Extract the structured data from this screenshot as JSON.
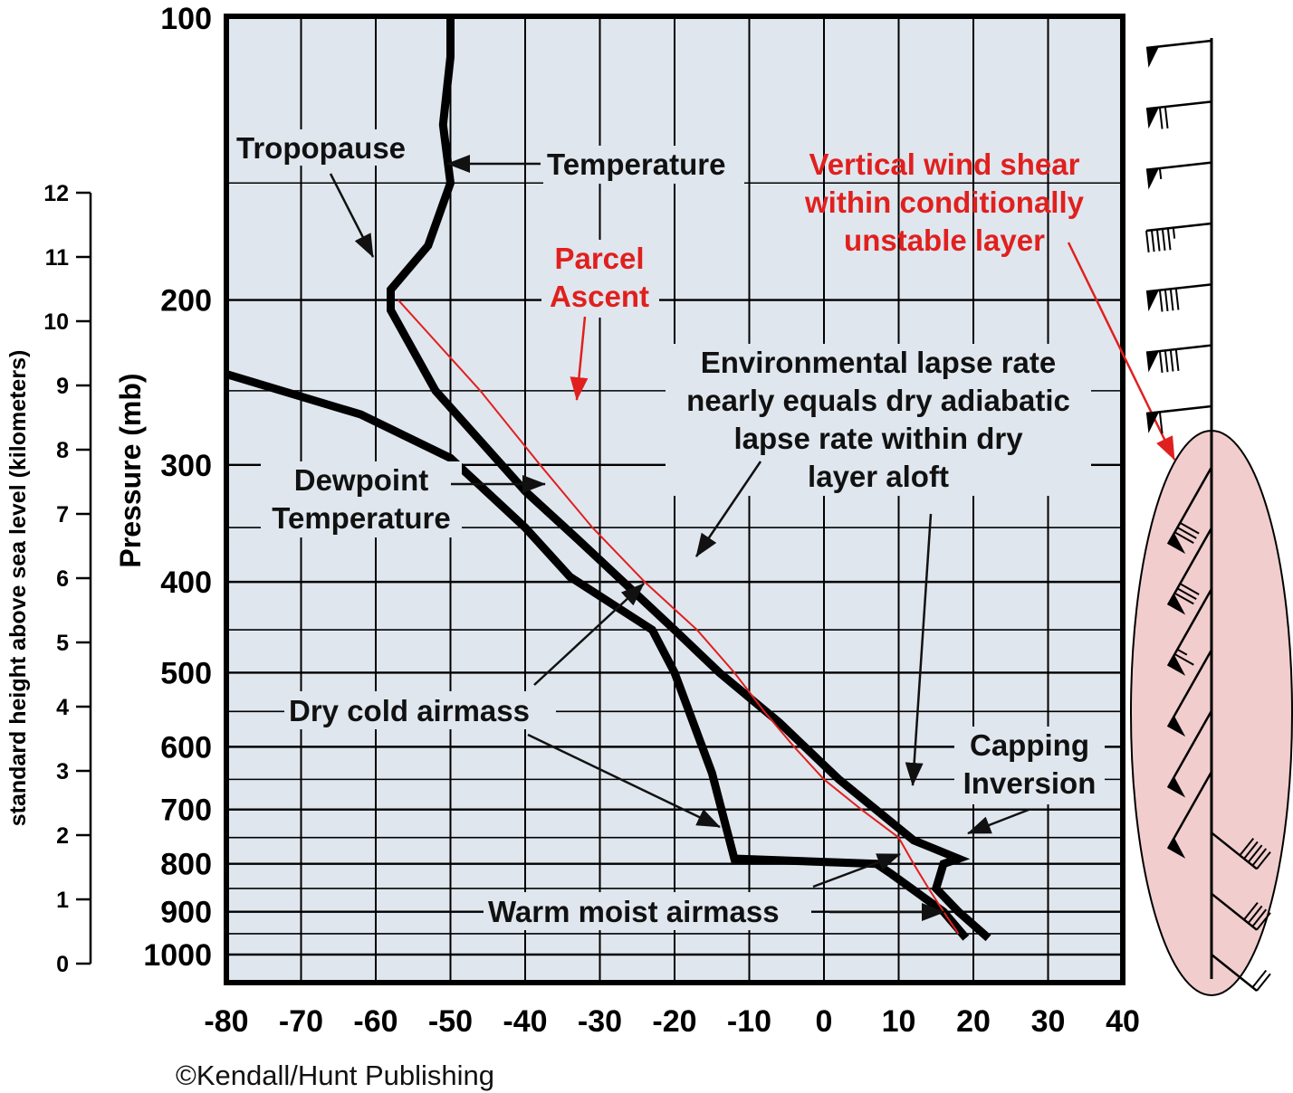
{
  "chart_data": {
    "type": "line",
    "xlim": [
      -80,
      40
    ],
    "x_ticks": [
      "-80",
      "-70",
      "-60",
      "-50",
      "-40",
      "-30",
      "-20",
      "-10",
      "0",
      "10",
      "20",
      "30",
      "40"
    ],
    "ylabel": "Pressure (mb)",
    "y_scale": "log",
    "ylim": [
      1000,
      100
    ],
    "y_ticks": [
      "100",
      "200",
      "300",
      "400",
      "500",
      "600",
      "700",
      "800",
      "900",
      "1000"
    ],
    "height_axis": {
      "label": "standard height above sea level (kilometers)",
      "ticks": [
        "12",
        "11",
        "10",
        "9",
        "8",
        "7",
        "6",
        "5",
        "4",
        "3",
        "2",
        "1",
        "0"
      ]
    },
    "grid": true,
    "series": [
      {
        "name": "Temperature",
        "color": "#000000",
        "points": [
          {
            "t": 22,
            "p": 960
          },
          {
            "t": 18,
            "p": 900
          },
          {
            "t": 15,
            "p": 850
          },
          {
            "t": 16,
            "p": 800
          },
          {
            "t": 18,
            "p": 790
          },
          {
            "t": 12,
            "p": 755
          },
          {
            "t": 2,
            "p": 650
          },
          {
            "t": -6,
            "p": 565
          },
          {
            "t": -14,
            "p": 500
          },
          {
            "t": -20,
            "p": 450
          },
          {
            "t": -33,
            "p": 360
          },
          {
            "t": -40,
            "p": 320
          },
          {
            "t": -52,
            "p": 250
          },
          {
            "t": -58,
            "p": 205
          },
          {
            "t": -58,
            "p": 195
          },
          {
            "t": -53,
            "p": 175
          },
          {
            "t": -50,
            "p": 150
          },
          {
            "t": -51,
            "p": 130
          },
          {
            "t": -50,
            "p": 110
          },
          {
            "t": -50,
            "p": 100
          }
        ]
      },
      {
        "name": "Dewpoint Temperature",
        "color": "#000000",
        "points": [
          {
            "t": 19,
            "p": 960
          },
          {
            "t": 16,
            "p": 900
          },
          {
            "t": 9,
            "p": 820
          },
          {
            "t": 7,
            "p": 800
          },
          {
            "t": -12,
            "p": 790
          },
          {
            "t": -15,
            "p": 640
          },
          {
            "t": -20,
            "p": 500
          },
          {
            "t": -23,
            "p": 450
          },
          {
            "t": -34,
            "p": 395
          },
          {
            "t": -40,
            "p": 350
          },
          {
            "t": -50,
            "p": 295
          },
          {
            "t": -62,
            "p": 265
          },
          {
            "t": -80,
            "p": 240
          }
        ]
      },
      {
        "name": "Parcel Ascent",
        "color": "#e0201e",
        "points": [
          {
            "t": 18,
            "p": 950
          },
          {
            "t": 16,
            "p": 900
          },
          {
            "t": 14,
            "p": 850
          },
          {
            "t": 12,
            "p": 800
          },
          {
            "t": 10,
            "p": 750
          },
          {
            "t": 5,
            "p": 700
          },
          {
            "t": 0,
            "p": 650
          },
          {
            "t": -4,
            "p": 600
          },
          {
            "t": -8,
            "p": 550
          },
          {
            "t": -12,
            "p": 500
          },
          {
            "t": -17,
            "p": 450
          },
          {
            "t": -24,
            "p": 400
          },
          {
            "t": -31,
            "p": 350
          },
          {
            "t": -38,
            "p": 300
          },
          {
            "t": -46,
            "p": 250
          },
          {
            "t": -57,
            "p": 200
          }
        ]
      }
    ]
  },
  "annotations": {
    "tropopause": "Tropopause",
    "temperature": "Temperature",
    "parcel_line1": "Parcel",
    "parcel_line2": "Ascent",
    "shear_line1": "Vertical wind shear",
    "shear_line2": "within conditionally",
    "shear_line3": "unstable layer",
    "env_line1": "Environmental lapse rate",
    "env_line2": "nearly equals dry adiabatic",
    "env_line3": "lapse rate within dry",
    "env_line4": "layer aloft",
    "dewpoint_line1": "Dewpoint",
    "dewpoint_line2": "Temperature",
    "dry_cold": "Dry cold airmass",
    "capping_line1": "Capping",
    "capping_line2": "Inversion",
    "warm_moist": "Warm moist airmass"
  },
  "copyright": "©Kendall/Hunt Publishing",
  "colors": {
    "plot_background": "#dfe6ee",
    "grid": "#000000",
    "accent_red": "#e0201e",
    "shear_ellipse_fill": "#f2cdcd"
  },
  "wind_profile": {
    "barbs": [
      {
        "flags": 1,
        "full": 0,
        "half": 0
      },
      {
        "flags": 1,
        "full": 2,
        "half": 0
      },
      {
        "flags": 1,
        "full": 0,
        "half": 1
      },
      {
        "flags": 0,
        "full": 5,
        "half": 1
      },
      {
        "flags": 1,
        "full": 4,
        "half": 0
      },
      {
        "flags": 1,
        "full": 4,
        "half": 0
      },
      {
        "flags": 1,
        "full": 1,
        "half": 0
      },
      {
        "flags": 1,
        "full": 3,
        "half": 0
      },
      {
        "flags": 1,
        "full": 3,
        "half": 0
      },
      {
        "flags": 1,
        "full": 1,
        "half": 1
      },
      {
        "flags": 1,
        "full": 0,
        "half": 0
      },
      {
        "flags": 1,
        "full": 0,
        "half": 0
      },
      {
        "flags": 1,
        "full": 0,
        "half": 0
      },
      {
        "flags": 0,
        "full": 5,
        "half": 0
      },
      {
        "flags": 0,
        "full": 4,
        "half": 0
      },
      {
        "flags": 0,
        "full": 2,
        "half": 0
      }
    ]
  }
}
